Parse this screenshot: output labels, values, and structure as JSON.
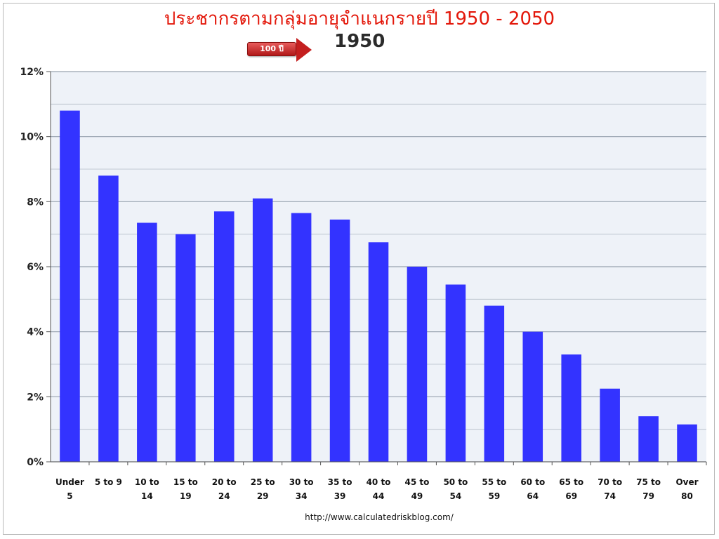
{
  "chart_data": {
    "type": "bar",
    "title": "ประชากรตามกลุ่มอายุจำแนกรายปี 1950 - 2050",
    "subtitle": "1950",
    "categories": [
      [
        "Under",
        "5"
      ],
      [
        "5 to 9"
      ],
      [
        "10 to",
        "14"
      ],
      [
        "15 to",
        "19"
      ],
      [
        "20 to",
        "24"
      ],
      [
        "25 to",
        "29"
      ],
      [
        "30 to",
        "34"
      ],
      [
        "35 to",
        "39"
      ],
      [
        "40 to",
        "44"
      ],
      [
        "45 to",
        "49"
      ],
      [
        "50 to",
        "54"
      ],
      [
        "55 to",
        "59"
      ],
      [
        "60 to",
        "64"
      ],
      [
        "65 to",
        "69"
      ],
      [
        "70 to",
        "74"
      ],
      [
        "75 to",
        "79"
      ],
      [
        "Over",
        "80"
      ]
    ],
    "values": [
      10.8,
      8.8,
      7.35,
      7.0,
      7.7,
      8.1,
      7.65,
      7.45,
      6.75,
      6.0,
      5.45,
      4.8,
      4.0,
      3.3,
      2.25,
      1.4,
      1.15
    ],
    "ylim": [
      0,
      12
    ],
    "yticks": [
      "0%",
      "2%",
      "4%",
      "6%",
      "8%",
      "10%",
      "12%"
    ],
    "ytick_values": [
      0,
      2,
      4,
      6,
      8,
      10,
      12
    ],
    "grid": true,
    "bar_color": "#3333ff",
    "plot_bg": "#eef2f8",
    "grid_color": "#8f9aa8",
    "xlabel": "",
    "ylabel": ""
  },
  "controls": {
    "step_button_label": "100 ปี"
  },
  "source_text": "http://www.calculatedriskblog.com/",
  "colors": {
    "title": "#e3170a",
    "button": "#c41f1f"
  }
}
